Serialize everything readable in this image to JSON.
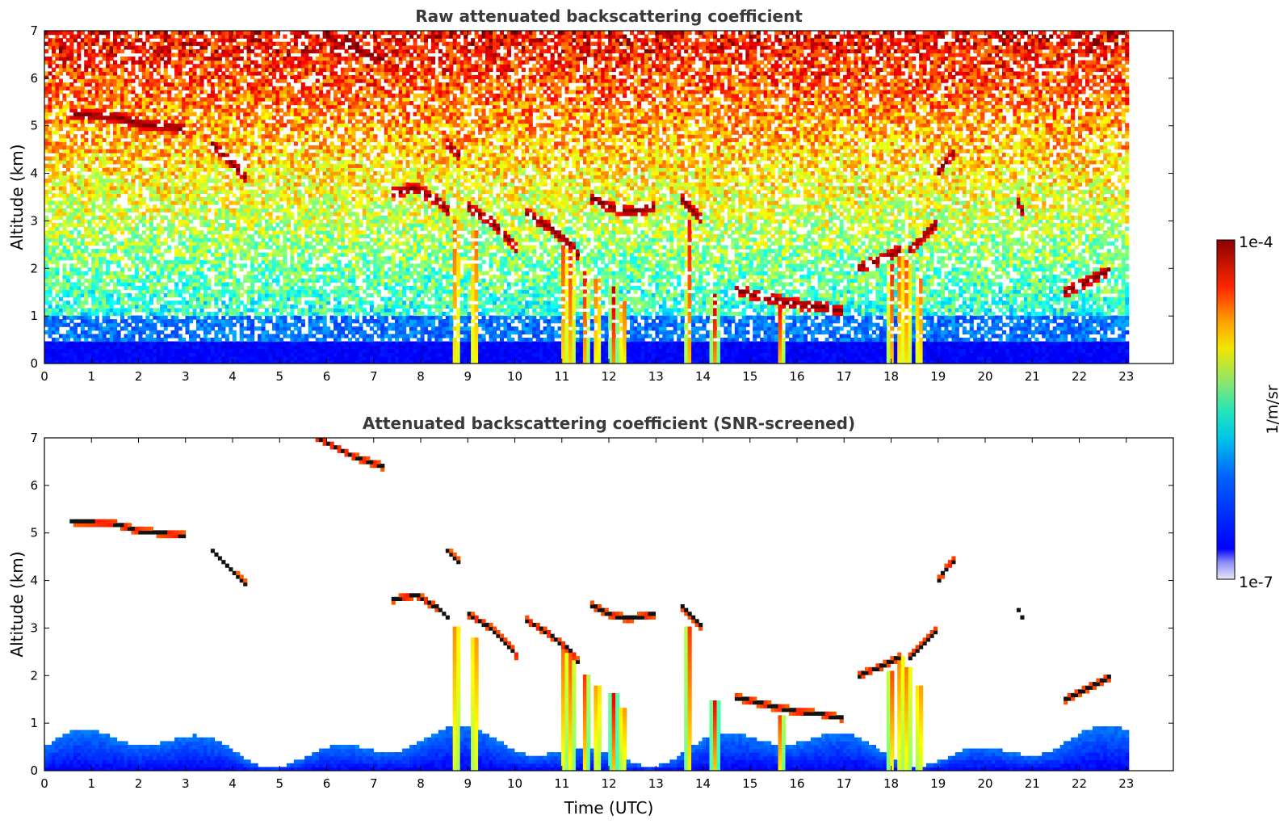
{
  "chart_data": [
    {
      "type": "heatmap",
      "title": "Raw attenuated backscattering coefficient",
      "xlabel": "",
      "ylabel": "Altitude (km)",
      "xlim": [
        0,
        24
      ],
      "ylim": [
        0,
        7
      ],
      "x_ticks": [
        "0",
        "1",
        "2",
        "3",
        "4",
        "5",
        "6",
        "7",
        "8",
        "9",
        "10",
        "11",
        "12",
        "13",
        "14",
        "15",
        "16",
        "17",
        "18",
        "19",
        "20",
        "21",
        "22",
        "23"
      ],
      "y_ticks": [
        "0",
        "1",
        "2",
        "3",
        "4",
        "5",
        "6",
        "7"
      ],
      "data_extent_hours": [
        0,
        23.05
      ],
      "layers": [
        {
          "t": [
            0.5,
            1.5,
            2.0,
            2.5,
            3.0
          ],
          "alt": [
            5.25,
            5.2,
            5.05,
            5.0,
            4.95
          ]
        },
        {
          "t": [
            7.4,
            7.9,
            8.4,
            8.6
          ],
          "alt": [
            3.6,
            3.7,
            3.4,
            3.2
          ]
        },
        {
          "t": [
            9.0,
            9.5,
            10.0,
            10.1
          ],
          "alt": [
            3.3,
            3.0,
            2.5,
            2.2
          ]
        },
        {
          "t": [
            10.2,
            10.7,
            11.2,
            11.4
          ],
          "alt": [
            3.2,
            2.9,
            2.5,
            2.2
          ]
        },
        {
          "t": [
            11.6,
            12.0,
            12.4,
            13.0
          ],
          "alt": [
            3.5,
            3.3,
            3.2,
            3.3
          ]
        },
        {
          "t": [
            13.5,
            13.8,
            14.0
          ],
          "alt": [
            3.5,
            3.2,
            3.0
          ]
        },
        {
          "t": [
            14.7,
            15.5,
            16.0,
            16.5,
            17.0
          ],
          "alt": [
            1.55,
            1.35,
            1.25,
            1.2,
            1.1
          ]
        },
        {
          "t": [
            17.3,
            17.8,
            18.2
          ],
          "alt": [
            2.0,
            2.2,
            2.4
          ]
        },
        {
          "t": [
            18.4,
            18.8,
            19.0
          ],
          "alt": [
            2.4,
            2.8,
            3.0
          ]
        },
        {
          "t": [
            21.7,
            22.2,
            22.7
          ],
          "alt": [
            1.5,
            1.75,
            2.0
          ]
        },
        {
          "t": [
            6.2,
            6.6,
            7.2
          ],
          "alt": [
            6.8,
            6.6,
            6.4
          ]
        },
        {
          "t": [
            5.8,
            6.2
          ],
          "alt": [
            7.0,
            6.8
          ]
        },
        {
          "t": [
            3.5,
            4.0,
            4.3
          ],
          "alt": [
            4.7,
            4.2,
            3.9
          ]
        },
        {
          "t": [
            8.5,
            8.8
          ],
          "alt": [
            4.7,
            4.4
          ]
        },
        {
          "t": [
            19.0,
            19.2,
            19.4
          ],
          "alt": [
            4.0,
            4.3,
            4.5
          ]
        },
        {
          "t": [
            20.7,
            20.8
          ],
          "alt": [
            3.4,
            3.2
          ]
        }
      ],
      "fallstreaks": [
        {
          "t": 8.75,
          "alt_top": 3.0
        },
        {
          "t": 9.15,
          "alt_top": 2.8
        },
        {
          "t": 11.05,
          "alt_top": 2.6
        },
        {
          "t": 11.2,
          "alt_top": 2.4
        },
        {
          "t": 11.5,
          "alt_top": 2.0
        },
        {
          "t": 11.75,
          "alt_top": 1.8
        },
        {
          "t": 12.1,
          "alt_top": 1.6
        },
        {
          "t": 12.3,
          "alt_top": 1.3
        },
        {
          "t": 13.7,
          "alt_top": 3.0
        },
        {
          "t": 14.25,
          "alt_top": 1.5
        },
        {
          "t": 15.65,
          "alt_top": 1.2
        },
        {
          "t": 18.0,
          "alt_top": 2.1
        },
        {
          "t": 18.2,
          "alt_top": 2.4
        },
        {
          "t": 18.35,
          "alt_top": 2.2
        },
        {
          "t": 18.6,
          "alt_top": 1.8
        }
      ]
    },
    {
      "type": "heatmap",
      "title": "Attenuated backscattering coefficient (SNR-screened)",
      "xlabel": "Time (UTC)",
      "ylabel": "Altitude (km)",
      "xlim": [
        0,
        24
      ],
      "ylim": [
        0,
        7
      ],
      "x_ticks": [
        "0",
        "1",
        "2",
        "3",
        "4",
        "5",
        "6",
        "7",
        "8",
        "9",
        "10",
        "11",
        "12",
        "13",
        "14",
        "15",
        "16",
        "17",
        "18",
        "19",
        "20",
        "21",
        "22",
        "23"
      ],
      "y_ticks": [
        "0",
        "1",
        "2",
        "3",
        "4",
        "5",
        "6",
        "7"
      ],
      "data_extent_hours": [
        0,
        23.05
      ]
    }
  ],
  "colorbar": {
    "top_label": "1e-4",
    "bottom_label": "1e-7",
    "unit": "1/m/sr",
    "colormap": "jet"
  }
}
